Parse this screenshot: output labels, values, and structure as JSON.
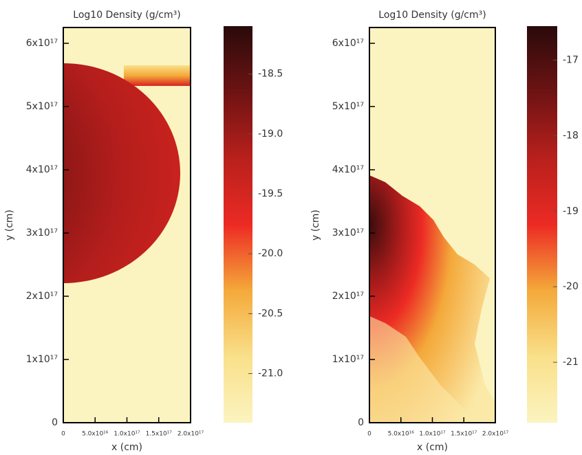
{
  "chart_data": [
    {
      "type": "heatmap",
      "title": "Log10 Density (g/cm³)",
      "xlabel": "x (cm)",
      "ylabel": "y (cm)",
      "xlim": [
        0,
        2e+17
      ],
      "ylim": [
        0,
        6.25e+17
      ],
      "xticks": [
        0,
        {
          "value": 5e+16,
          "label": "5.0x10¹⁶"
        },
        {
          "value": 1e+17,
          "label": "1.0x10¹⁷"
        },
        {
          "value": 1.5e+17,
          "label": "1.5x10¹⁷"
        },
        {
          "value": 2e+17,
          "label": "2.0x10¹⁷"
        }
      ],
      "yticks": [
        0,
        {
          "value": 1e+17,
          "label": "1x10¹⁷"
        },
        {
          "value": 2e+17,
          "label": "2x10¹⁷"
        },
        {
          "value": 3e+17,
          "label": "3x10¹⁷"
        },
        {
          "value": 4e+17,
          "label": "4x10¹⁷"
        },
        {
          "value": 5e+17,
          "label": "5x10¹⁷"
        },
        {
          "value": 6e+17,
          "label": "6x10¹⁷"
        }
      ],
      "colorbar": {
        "lim": [
          -21.41,
          -18.1
        ],
        "ticks": [
          -18.5,
          {
            "value": -19.0,
            "label": "-19.0"
          },
          -19.5,
          {
            "value": -20.0,
            "label": "-20.0"
          },
          -20.5,
          {
            "value": -21.0,
            "label": "-21.0"
          }
        ],
        "colormap": [
          "#fbf4c0",
          "#f9e08a",
          "#f4a93a",
          "#ec2a24",
          "#b8201c",
          "#6e1313",
          "#2a0a0a"
        ]
      }
    },
    {
      "type": "heatmap",
      "title": "Log10 Density (g/cm³)",
      "xlabel": "x (cm)",
      "ylabel": "y (cm)",
      "xlim": [
        0,
        2e+17
      ],
      "ylim": [
        0,
        6.25e+17
      ],
      "xticks": [
        0,
        {
          "value": 5e+16,
          "label": "5.0x10¹⁶"
        },
        {
          "value": 1e+17,
          "label": "1.0x10¹⁷"
        },
        {
          "value": 1.5e+17,
          "label": "1.5x10¹⁷"
        },
        {
          "value": 2e+17,
          "label": "2.0x10¹⁷"
        }
      ],
      "yticks": [
        0,
        {
          "value": 1e+17,
          "label": "1x10¹⁷"
        },
        {
          "value": 2e+17,
          "label": "2x10¹⁷"
        },
        {
          "value": 3e+17,
          "label": "3x10¹⁷"
        },
        {
          "value": 4e+17,
          "label": "4x10¹⁷"
        },
        {
          "value": 5e+17,
          "label": "5x10¹⁷"
        },
        {
          "value": 6e+17,
          "label": "6x10¹⁷"
        }
      ],
      "colorbar": {
        "lim": [
          -21.8,
          -16.55
        ],
        "ticks": [
          -17,
          -18,
          -19,
          -20,
          -21
        ],
        "colormap": [
          "#fbf4c0",
          "#f9e08a",
          "#f4a93a",
          "#ec2a24",
          "#b8201c",
          "#6e1313",
          "#2a0a0a"
        ]
      }
    }
  ]
}
